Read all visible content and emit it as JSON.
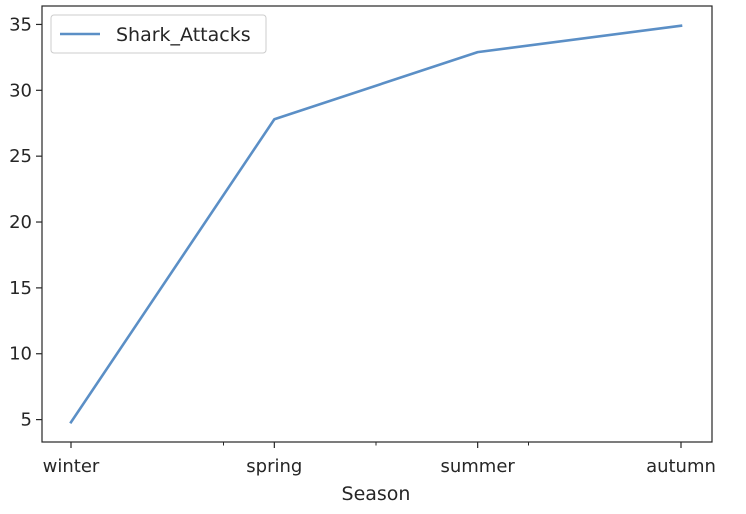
{
  "chart_data": {
    "type": "line",
    "categories": [
      "winter",
      "spring",
      "summer",
      "autumn"
    ],
    "minor_ticks": 3,
    "series": [
      {
        "name": "Shark_Attacks",
        "values": [
          4.8,
          27.8,
          32.9,
          34.9
        ],
        "color": "#5b8fc6"
      }
    ],
    "xlabel": "Season",
    "ylabel": "",
    "ylim": [
      3.3,
      36.4
    ],
    "yticks": [
      5,
      10,
      15,
      20,
      25,
      30,
      35
    ],
    "grid": false,
    "legend_position": "top-left"
  }
}
